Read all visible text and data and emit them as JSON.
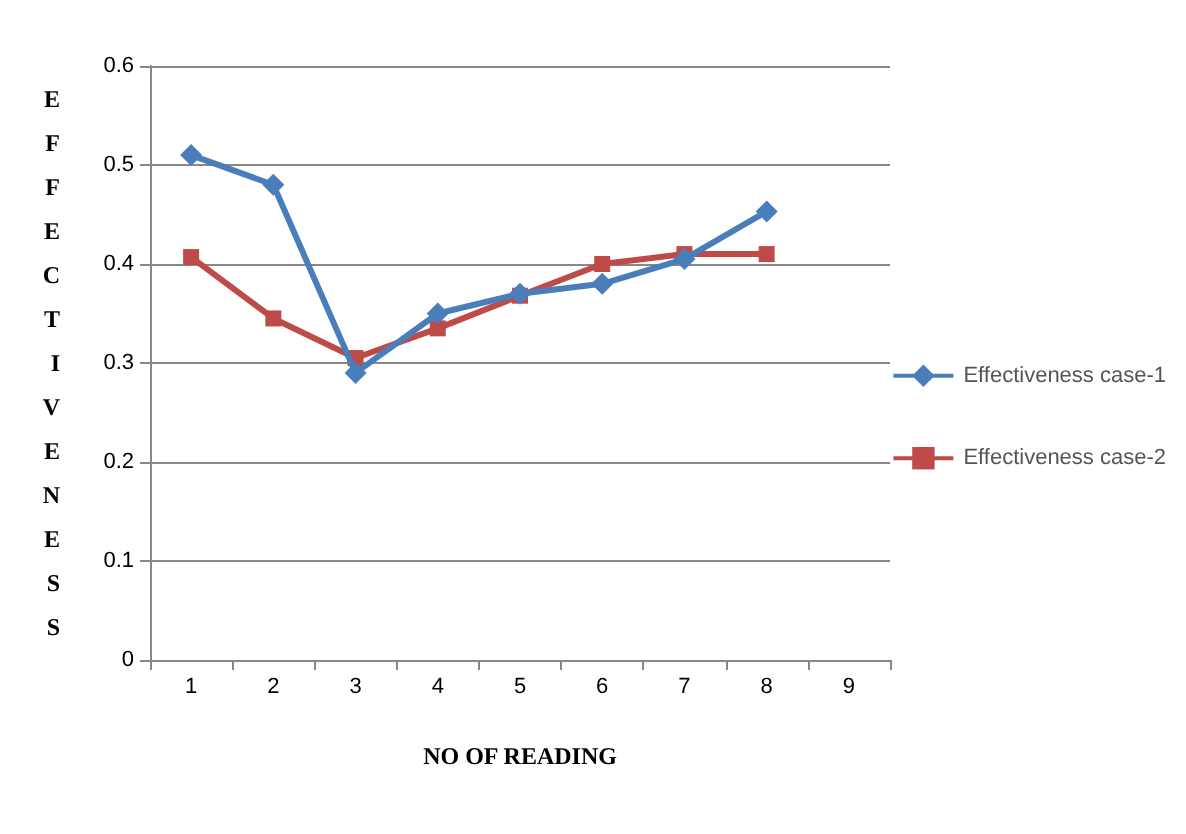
{
  "chart_data": {
    "type": "line",
    "xlabel": "NO OF READING",
    "ylabel": "EFFECTIVENESS",
    "categories": [
      "1",
      "2",
      "3",
      "4",
      "5",
      "6",
      "7",
      "8",
      "9"
    ],
    "series": [
      {
        "name": "Effectiveness case-1",
        "color": "#4a7ebb",
        "marker": "diamond",
        "values": [
          0.51,
          0.48,
          0.29,
          0.35,
          0.37,
          0.38,
          0.405,
          0.453,
          null
        ]
      },
      {
        "name": "Effectiveness case-2",
        "color": "#be4b48",
        "marker": "square",
        "values": [
          0.407,
          0.345,
          0.305,
          0.335,
          0.368,
          0.4,
          0.41,
          0.41,
          null
        ]
      }
    ],
    "ylim": [
      0,
      0.6
    ],
    "yticks": [
      0,
      0.1,
      0.2,
      0.3,
      0.4,
      0.5,
      0.6
    ],
    "grid": "y",
    "legend": "right",
    "line_style": "solid"
  }
}
